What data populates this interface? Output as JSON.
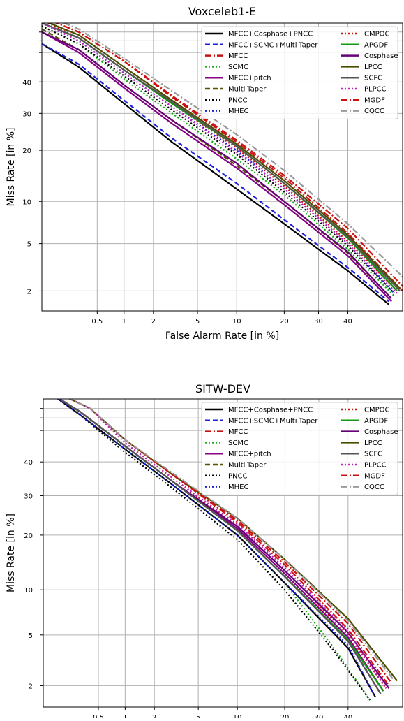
{
  "chart_data": [
    {
      "type": "line",
      "title": "Voxceleb1-E",
      "xlabel": "False Alarm Rate [in %]",
      "ylabel": "Miss Rate [in %]",
      "scale": "normal-deviate (DET)",
      "grid": true,
      "legend_position": "top-right",
      "x_ticks": [
        0.5,
        1,
        2,
        5,
        10,
        20,
        30,
        40
      ],
      "y_ticks": [
        2,
        5,
        10,
        20,
        30,
        40
      ],
      "xlim": [
        0.1,
        60
      ],
      "ylim": [
        1.3,
        60
      ],
      "series": [
        {
          "name": "MFCC+Cosphase+PNCC",
          "color": "#000000",
          "dash": "solid",
          "x": [
            0.1,
            0.3,
            1,
            3,
            10,
            20,
            40,
            55
          ],
          "y": [
            53,
            45,
            33,
            22,
            12,
            7,
            3,
            1.5
          ]
        },
        {
          "name": "MFCC+SCMC+Multi-Taper",
          "color": "#1f1fe0",
          "dash": "dashed",
          "x": [
            0.1,
            0.3,
            1,
            3,
            10,
            20,
            40,
            55
          ],
          "y": [
            53,
            46,
            34,
            23,
            13,
            7.5,
            3.2,
            1.6
          ]
        },
        {
          "name": "MFCC",
          "color": "#cc1111",
          "dash": "dashdot",
          "x": [
            0.1,
            0.3,
            1,
            3,
            10,
            20,
            40,
            60
          ],
          "y": [
            62,
            57,
            47,
            35,
            22,
            14,
            6,
            2
          ]
        },
        {
          "name": "SCMC",
          "color": "#11aa11",
          "dash": "dotted",
          "x": [
            0.1,
            0.3,
            1,
            3,
            10,
            20,
            40,
            57
          ],
          "y": [
            59,
            53,
            41,
            30,
            18,
            11,
            4.5,
            1.8
          ]
        },
        {
          "name": "MFCC+pitch",
          "color": "#880088",
          "dash": "solid",
          "x": [
            0.1,
            0.3,
            1,
            3,
            10,
            20,
            40,
            56
          ],
          "y": [
            57,
            50,
            38,
            27,
            16,
            9.5,
            4,
            1.6
          ]
        },
        {
          "name": "Multi-Taper",
          "color": "#555500",
          "dash": "dashed",
          "x": [
            0.1,
            0.3,
            1,
            3,
            10,
            20,
            40,
            56
          ],
          "y": [
            58,
            51,
            39,
            28,
            16.5,
            10,
            4.2,
            1.7
          ]
        },
        {
          "name": "PNCC",
          "color": "#000000",
          "dash": "dotted",
          "x": [
            0.1,
            0.3,
            1,
            3,
            10,
            20,
            40,
            57
          ],
          "y": [
            59,
            53,
            42,
            31,
            19,
            11.5,
            4.8,
            1.9
          ]
        },
        {
          "name": "MHEC",
          "color": "#1f1fe0",
          "dash": "dotted",
          "x": [
            0.1,
            0.3,
            1,
            3,
            10,
            20,
            40,
            57
          ],
          "y": [
            60,
            54,
            43,
            32,
            20,
            12,
            5,
            1.9
          ]
        },
        {
          "name": "CMPOC",
          "color": "#cc1111",
          "dash": "dotted",
          "x": [
            0.1,
            0.3,
            1,
            3,
            10,
            20,
            40,
            58
          ],
          "y": [
            61,
            55,
            44,
            33,
            20.5,
            12.5,
            5.2,
            2
          ]
        },
        {
          "name": "APGDF",
          "color": "#119911",
          "dash": "solid",
          "x": [
            0.1,
            0.3,
            1,
            3,
            10,
            20,
            40,
            58
          ],
          "y": [
            60,
            55,
            44,
            33,
            21,
            13,
            5.5,
            2
          ]
        },
        {
          "name": "Cosphase",
          "color": "#660077",
          "dash": "solid",
          "x": [
            0.1,
            0.3,
            1,
            3,
            10,
            20,
            40,
            56
          ],
          "y": [
            57,
            51,
            39,
            28,
            17,
            10,
            4.3,
            1.7
          ]
        },
        {
          "name": "LPCC",
          "color": "#4d4d00",
          "dash": "solid",
          "x": [
            0.1,
            0.3,
            1,
            3,
            10,
            20,
            40,
            59
          ],
          "y": [
            61,
            56,
            45,
            34,
            21.5,
            13.5,
            5.8,
            2.1
          ]
        },
        {
          "name": "SCFC",
          "color": "#555555",
          "dash": "solid",
          "x": [
            0.1,
            0.3,
            1,
            3,
            10,
            20,
            40,
            59
          ],
          "y": [
            60,
            55,
            44,
            33.5,
            21,
            13,
            5.6,
            2
          ]
        },
        {
          "name": "PLPCC",
          "color": "#bb22bb",
          "dash": "dotted",
          "x": [
            0.1,
            0.3,
            1,
            3,
            10,
            20,
            40,
            58
          ],
          "y": [
            60,
            54,
            43,
            32,
            19.5,
            12,
            5,
            1.9
          ]
        },
        {
          "name": "MGDF",
          "color": "#cc1111",
          "dash": "dashdot",
          "x": [
            0.1,
            0.3,
            1,
            3,
            10,
            20,
            40,
            60
          ],
          "y": [
            62,
            57,
            47,
            35.5,
            22.5,
            14.5,
            6.5,
            2.2
          ]
        },
        {
          "name": "CQCC",
          "color": "#999999",
          "dash": "dashdot",
          "x": [
            0.1,
            0.3,
            1,
            3,
            10,
            20,
            40,
            62
          ],
          "y": [
            63,
            58,
            48,
            37,
            24,
            15.5,
            7,
            2.4
          ]
        }
      ]
    },
    {
      "type": "line",
      "title": "SITW-DEV",
      "xlabel": "False Alarm Rate [in %]",
      "ylabel": "Miss Rate [in %]",
      "scale": "normal-deviate (DET)",
      "grid": true,
      "legend_position": "top-right",
      "x_ticks": [
        0.5,
        1,
        2,
        5,
        10,
        20,
        30,
        40
      ],
      "y_ticks": [
        2,
        5,
        10,
        20,
        30,
        40
      ],
      "xlim": [
        0.1,
        60
      ],
      "ylim": [
        1.3,
        60
      ],
      "series": [
        {
          "name": "MFCC+Cosphase+PNCC",
          "color": "#000000",
          "dash": "solid",
          "x": [
            0.12,
            0.3,
            1,
            3,
            10,
            20,
            40,
            50
          ],
          "y": [
            62,
            55,
            44,
            33,
            20,
            11,
            4,
            1.6
          ]
        },
        {
          "name": "MFCC+SCMC+Multi-Taper",
          "color": "#1f1fe0",
          "dash": "dashed",
          "x": [
            0.12,
            0.3,
            1,
            3,
            10,
            20,
            40,
            52
          ],
          "y": [
            62,
            56,
            45,
            34,
            21,
            12,
            4.5,
            1.7
          ]
        },
        {
          "name": "MFCC",
          "color": "#cc1111",
          "dash": "dashdot",
          "x": [
            0.15,
            0.4,
            1,
            3,
            10,
            20,
            40,
            55
          ],
          "y": [
            62,
            57,
            47,
            36,
            23,
            14,
            5.5,
            2
          ]
        },
        {
          "name": "SCMC",
          "color": "#11aa11",
          "dash": "dotted",
          "x": [
            0.12,
            0.3,
            1,
            3,
            10,
            20,
            35,
            48
          ],
          "y": [
            62,
            55,
            44,
            33,
            20,
            11,
            4,
            1.5
          ]
        },
        {
          "name": "MFCC+pitch",
          "color": "#880088",
          "dash": "solid",
          "x": [
            0.12,
            0.3,
            1,
            3,
            10,
            20,
            40,
            53
          ],
          "y": [
            62,
            56,
            45,
            34,
            21.5,
            12.5,
            4.8,
            1.8
          ]
        },
        {
          "name": "Multi-Taper",
          "color": "#555500",
          "dash": "dashed",
          "x": [
            0.12,
            0.3,
            1,
            3,
            10,
            20,
            40,
            52
          ],
          "y": [
            62,
            56,
            45,
            34,
            21,
            12,
            4.6,
            1.7
          ]
        },
        {
          "name": "PNCC",
          "color": "#000000",
          "dash": "dotted",
          "x": [
            0.12,
            0.3,
            1,
            3,
            10,
            20,
            35,
            48
          ],
          "y": [
            62,
            55,
            43,
            32,
            19,
            10,
            3.8,
            1.5
          ]
        },
        {
          "name": "MHEC",
          "color": "#1f1fe0",
          "dash": "dotted",
          "x": [
            0.12,
            0.3,
            1,
            3,
            10,
            20,
            40,
            50
          ],
          "y": [
            62,
            55,
            44,
            33,
            20,
            11,
            4.2,
            1.6
          ]
        },
        {
          "name": "CMPOC",
          "color": "#cc1111",
          "dash": "dotted",
          "x": [
            0.15,
            0.4,
            1,
            3,
            10,
            20,
            40,
            54
          ],
          "y": [
            62,
            57,
            46,
            35,
            22,
            13,
            5,
            1.9
          ]
        },
        {
          "name": "APGDF",
          "color": "#119911",
          "dash": "solid",
          "x": [
            0.12,
            0.3,
            1,
            3,
            10,
            20,
            40,
            53
          ],
          "y": [
            62,
            56,
            45,
            34,
            21,
            12,
            4.6,
            1.8
          ]
        },
        {
          "name": "Cosphase",
          "color": "#660077",
          "dash": "solid",
          "x": [
            0.12,
            0.3,
            1,
            3,
            10,
            20,
            40,
            55
          ],
          "y": [
            62,
            56,
            45,
            34,
            22,
            13,
            5.2,
            1.9
          ]
        },
        {
          "name": "LPCC",
          "color": "#4d4d00",
          "dash": "solid",
          "x": [
            0.15,
            0.4,
            1,
            3,
            10,
            20,
            40,
            58
          ],
          "y": [
            62,
            57,
            47,
            36,
            24,
            15,
            6.5,
            2.2
          ]
        },
        {
          "name": "SCFC",
          "color": "#555555",
          "dash": "solid",
          "x": [
            0.12,
            0.3,
            1,
            3,
            10,
            20,
            40,
            52
          ],
          "y": [
            62,
            56,
            45,
            34,
            21,
            12,
            4.5,
            1.7
          ]
        },
        {
          "name": "PLPCC",
          "color": "#bb22bb",
          "dash": "dotted",
          "x": [
            0.15,
            0.4,
            1,
            3,
            10,
            20,
            40,
            54
          ],
          "y": [
            62,
            57,
            46,
            35,
            22.5,
            13.5,
            5.3,
            1.9
          ]
        },
        {
          "name": "MGDF",
          "color": "#cc1111",
          "dash": "dashdot",
          "x": [
            0.15,
            0.4,
            1,
            3,
            10,
            20,
            40,
            56
          ],
          "y": [
            62,
            57,
            47,
            36,
            23.5,
            14.5,
            6,
            2.1
          ]
        },
        {
          "name": "CQCC",
          "color": "#999999",
          "dash": "dashdot",
          "x": [
            0.15,
            0.4,
            1,
            3,
            10,
            20,
            40,
            57
          ],
          "y": [
            62,
            57,
            47,
            36.5,
            24,
            15,
            6.3,
            2.2
          ]
        }
      ]
    }
  ]
}
